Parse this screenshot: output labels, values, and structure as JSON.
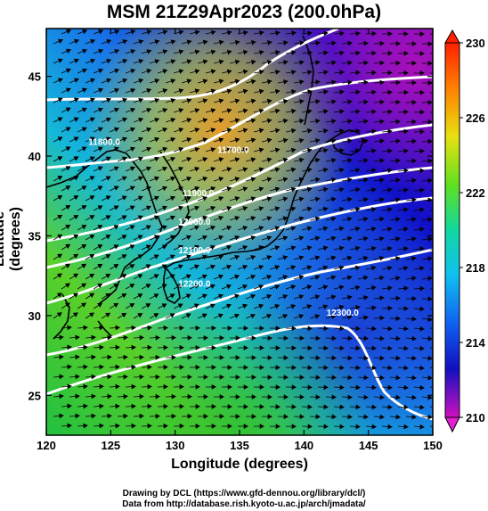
{
  "title": "MSM 21Z29Apr2023 (200.0hPa)",
  "x_axis": {
    "label": "Longitude (degrees)",
    "ticks": [
      "120",
      "125",
      "130",
      "135",
      "140",
      "145",
      "150"
    ]
  },
  "y_axis": {
    "label": "Latitude  (degrees)",
    "ticks": [
      "25",
      "30",
      "35",
      "40",
      "45"
    ]
  },
  "colorbar": {
    "ticks": [
      "230",
      "226",
      "222",
      "218",
      "214",
      "210"
    ]
  },
  "contour_labels": [
    {
      "text": "12300.0",
      "lon": 143,
      "lat": 30.0
    },
    {
      "text": "12200.0",
      "lon": 131.5,
      "lat": 31.8
    },
    {
      "text": "12100.0",
      "lon": 131.5,
      "lat": 33.9
    },
    {
      "text": "12000.0",
      "lon": 131.5,
      "lat": 35.7
    },
    {
      "text": "11900.0",
      "lon": 131.8,
      "lat": 37.5
    },
    {
      "text": "11800.0",
      "lon": 124.5,
      "lat": 40.7
    },
    {
      "text": "11700.0",
      "lon": 134.5,
      "lat": 40.2
    }
  ],
  "credits": {
    "line1": "Drawing by DCL (https://www.gfd-dennou.org/library/dcl/)",
    "line2": "Data from http://database.rish.kyoto-u.ac.jp/arch/jmadata/"
  },
  "colors": {
    "frame": "#000000",
    "contour": "#ffffff",
    "arrow": "#000000"
  }
}
